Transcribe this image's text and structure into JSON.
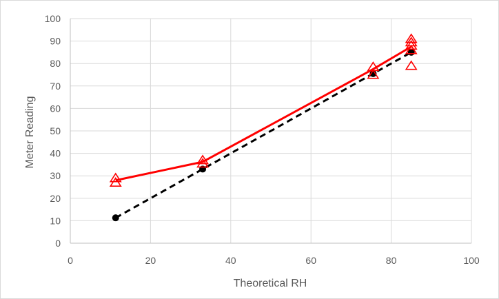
{
  "chart_data": {
    "type": "scatter",
    "title": "",
    "xlabel": "Theoretical RH",
    "ylabel": "Meter Reading",
    "xlim": [
      0,
      100
    ],
    "ylim": [
      0,
      100
    ],
    "x_ticks": [
      0,
      20,
      40,
      60,
      80,
      100
    ],
    "y_ticks": [
      0,
      10,
      20,
      30,
      40,
      50,
      60,
      70,
      80,
      90,
      100
    ],
    "grid": true,
    "legend": "none",
    "series": [
      {
        "marker": "circle",
        "line": "dashed",
        "color": "#000000",
        "points": [
          {
            "x": 11.3,
            "y": 11.3
          },
          {
            "x": 33,
            "y": 33
          },
          {
            "x": 75.5,
            "y": 75.5
          },
          {
            "x": 85,
            "y": 85
          }
        ]
      },
      {
        "marker": "triangle-open",
        "line": "solid",
        "color": "#ff0000",
        "points": [
          {
            "x": 11.3,
            "y": 27
          },
          {
            "x": 11.3,
            "y": 29
          },
          {
            "x": 33,
            "y": 35.5
          },
          {
            "x": 33,
            "y": 37
          },
          {
            "x": 75.5,
            "y": 75
          },
          {
            "x": 75.5,
            "y": 78.5
          },
          {
            "x": 85,
            "y": 79
          },
          {
            "x": 85,
            "y": 86
          },
          {
            "x": 85,
            "y": 88
          },
          {
            "x": 85,
            "y": 89.5
          },
          {
            "x": 85,
            "y": 91
          }
        ],
        "trend": [
          {
            "x": 11.3,
            "y": 28
          },
          {
            "x": 33,
            "y": 36.2
          },
          {
            "x": 75.5,
            "y": 77.5
          },
          {
            "x": 85,
            "y": 87.5
          }
        ]
      }
    ]
  }
}
